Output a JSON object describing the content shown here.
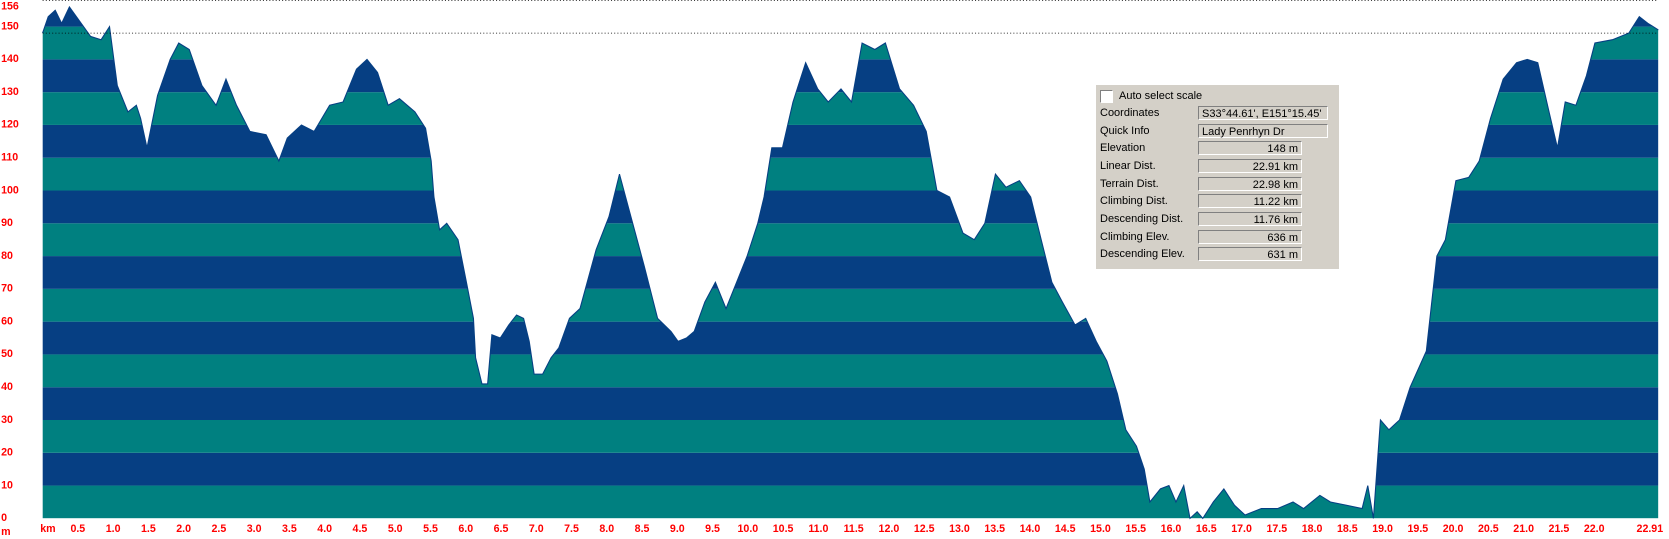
{
  "chart_data": {
    "type": "area",
    "y_label": "m",
    "x": [
      0,
      0.08,
      0.18,
      0.27,
      0.38,
      0.48,
      0.68,
      0.83,
      0.95,
      1.06,
      1.21,
      1.33,
      1.39,
      1.48,
      1.63,
      1.81,
      1.93,
      2.08,
      2.26,
      2.46,
      2.6,
      2.75,
      2.94,
      3.17,
      3.35,
      3.47,
      3.67,
      3.85,
      4.07,
      4.26,
      4.45,
      4.6,
      4.75,
      4.9,
      5.06,
      5.28,
      5.43,
      5.51,
      5.55,
      5.63,
      5.73,
      5.89,
      6.01,
      6.11,
      6.14,
      6.23,
      6.31,
      6.37,
      6.49,
      6.61,
      6.72,
      6.82,
      6.9,
      6.97,
      7.09,
      7.21,
      7.32,
      7.47,
      7.62,
      7.85,
      8.03,
      8.18,
      8.33,
      8.53,
      8.72,
      8.91,
      9.01,
      9.13,
      9.24,
      9.39,
      9.54,
      9.69,
      9.84,
      9.99,
      10.14,
      10.23,
      10.34,
      10.49,
      10.64,
      10.82,
      10.99,
      11.14,
      11.32,
      11.47,
      11.62,
      11.8,
      11.95,
      12.15,
      12.35,
      12.53,
      12.68,
      12.86,
      13.05,
      13.21,
      13.36,
      13.51,
      13.66,
      13.85,
      14.01,
      14.16,
      14.31,
      14.46,
      14.64,
      14.79,
      14.94,
      15.09,
      15.24,
      15.36,
      15.51,
      15.62,
      15.7,
      15.85,
      15.97,
      16.07,
      16.18,
      16.27,
      16.37,
      16.45,
      16.6,
      16.75,
      16.9,
      17.05,
      17.28,
      17.51,
      17.73,
      17.88,
      18.11,
      18.26,
      18.49,
      18.71,
      18.79,
      18.87,
      18.97,
      19.09,
      19.24,
      19.39,
      19.62,
      19.77,
      19.89,
      20.04,
      20.22,
      20.37,
      20.53,
      20.71,
      20.9,
      21.05,
      21.2,
      21.36,
      21.48,
      21.59,
      21.74,
      21.89,
      22.01,
      22.26,
      22.49,
      22.64,
      22.76,
      22.91
    ],
    "values": [
      148,
      153,
      155,
      151,
      156,
      153,
      147,
      146,
      150,
      132,
      124,
      126,
      122,
      113,
      129,
      140,
      145,
      143,
      132,
      126,
      134,
      126,
      118,
      117,
      109,
      116,
      120,
      118,
      126,
      127,
      137,
      140,
      136,
      126,
      128,
      124,
      119,
      109,
      98,
      88,
      90,
      85,
      72,
      61,
      49,
      41,
      41,
      56,
      55,
      59,
      62,
      61,
      54,
      44,
      44,
      49,
      52,
      61,
      64,
      82,
      92,
      105,
      93,
      77,
      61,
      57,
      54,
      55,
      57,
      66,
      72,
      64,
      72,
      80,
      90,
      98,
      113,
      113,
      127,
      139,
      131,
      127,
      131,
      127,
      145,
      143,
      145,
      131,
      126,
      118,
      100,
      98,
      87,
      85,
      90,
      105,
      101,
      103,
      98,
      85,
      72,
      66,
      59,
      61,
      54,
      48,
      38,
      27,
      22,
      15,
      5,
      9,
      10,
      5,
      10,
      0,
      2,
      0,
      5,
      9,
      4,
      1,
      3,
      3,
      5,
      3,
      7,
      5,
      4,
      3,
      10,
      0,
      30,
      27,
      30,
      40,
      51,
      80,
      85,
      103,
      104,
      109,
      122,
      134,
      139,
      140,
      139,
      124,
      113,
      127,
      126,
      135,
      145,
      146,
      148,
      153,
      151,
      149
    ],
    "xlim": [
      0,
      22.91
    ],
    "ylim": [
      0,
      156
    ],
    "xticks": [
      {
        "value": 0,
        "label": "km"
      },
      0.5,
      {
        "value": 1,
        "label": "1.0"
      },
      1.5,
      {
        "value": 2,
        "label": "2.0"
      },
      2.5,
      {
        "value": 3,
        "label": "3.0"
      },
      3.5,
      {
        "value": 4,
        "label": "4.0"
      },
      4.5,
      {
        "value": 5,
        "label": "5.0"
      },
      5.5,
      {
        "value": 6,
        "label": "6.0"
      },
      6.5,
      {
        "value": 7,
        "label": "7.0"
      },
      7.5,
      {
        "value": 8,
        "label": "8.0"
      },
      8.5,
      {
        "value": 9,
        "label": "9.0"
      },
      9.5,
      {
        "value": 10,
        "label": "10.0"
      },
      10.5,
      {
        "value": 11,
        "label": "11.0"
      },
      11.5,
      {
        "value": 12,
        "label": "12.0"
      },
      12.5,
      {
        "value": 13,
        "label": "13.0"
      },
      13.5,
      {
        "value": 14,
        "label": "14.0"
      },
      14.5,
      {
        "value": 15,
        "label": "15.0"
      },
      15.5,
      {
        "value": 16,
        "label": "16.0"
      },
      16.5,
      {
        "value": 17,
        "label": "17.0"
      },
      17.5,
      {
        "value": 18,
        "label": "18.0"
      },
      18.5,
      {
        "value": 19,
        "label": "19.0"
      },
      19.5,
      {
        "value": 20,
        "label": "20.0"
      },
      20.5,
      {
        "value": 21,
        "label": "21.0"
      },
      21.5,
      {
        "value": 22,
        "label": "22.0"
      },
      22.91
    ],
    "yticks": [
      0,
      10,
      20,
      30,
      40,
      50,
      60,
      70,
      80,
      90,
      100,
      110,
      120,
      130,
      140,
      150,
      156
    ],
    "band_colors": [
      "#008080",
      "#063f83"
    ],
    "label_color": "#ff0000",
    "marker_line": 148
  },
  "info_panel": {
    "checkbox": "Auto select scale",
    "rows": [
      [
        "Coordinates",
        "S33°44.61', E151°15.45'"
      ],
      [
        "Quick Info",
        "Lady Penrhyn Dr"
      ],
      [
        "Elevation",
        "148 m"
      ],
      [
        "Linear Dist.",
        "22.91 km"
      ],
      [
        "Terrain Dist.",
        "22.98 km"
      ],
      [
        "Climbing Dist.",
        "11.22 km"
      ],
      [
        "Descending Dist.",
        "11.76 km"
      ],
      [
        "Climbing Elev.",
        "636 m"
      ],
      [
        "Descending Elev.",
        "631 m"
      ]
    ]
  }
}
